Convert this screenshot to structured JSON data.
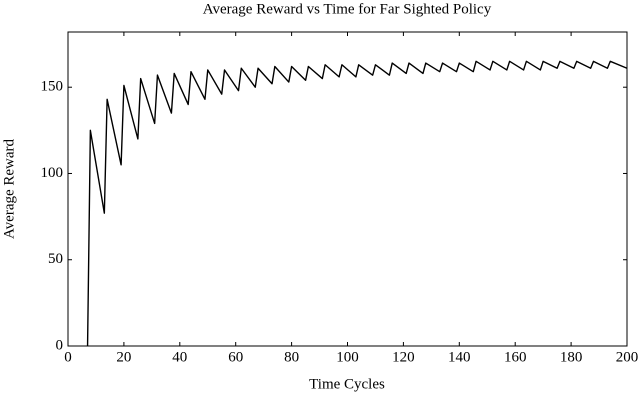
{
  "chart_data": {
    "type": "line",
    "title": "Average Reward vs Time for Far Sighted Policy",
    "xlabel": "Time Cycles",
    "ylabel": "Average Reward",
    "x": [
      7,
      8,
      13,
      14,
      19,
      20,
      25,
      26,
      31,
      32,
      37,
      38,
      43,
      44,
      49,
      50,
      55,
      56,
      61,
      62,
      67,
      68,
      73,
      74,
      79,
      80,
      85,
      86,
      91,
      92,
      97,
      98,
      103,
      104,
      109,
      110,
      115,
      116,
      121,
      122,
      127,
      128,
      133,
      134,
      139,
      140,
      145,
      146,
      151,
      152,
      157,
      158,
      163,
      164,
      169,
      170,
      175,
      176,
      181,
      182,
      187,
      188,
      193,
      194,
      200
    ],
    "values": [
      0,
      125,
      77,
      143,
      105,
      151,
      120,
      155,
      129,
      157,
      135,
      158,
      140,
      159,
      143,
      160,
      146,
      160,
      148,
      161,
      150,
      161,
      152,
      162,
      153,
      162,
      154,
      162,
      155,
      163,
      156,
      163,
      156,
      163,
      157,
      163,
      157,
      164,
      158,
      164,
      158,
      164,
      159,
      164,
      159,
      164,
      159,
      165,
      160,
      165,
      160,
      165,
      160,
      165,
      160,
      165,
      161,
      165,
      161,
      165,
      161,
      165,
      161,
      165,
      161
    ],
    "color": "#000000",
    "xlim": [
      0,
      200
    ],
    "xticks": [
      0,
      20,
      40,
      60,
      80,
      100,
      120,
      140,
      160,
      180,
      200
    ],
    "ylim": [
      0,
      182
    ],
    "yticks": [
      0,
      50,
      100,
      150
    ]
  }
}
